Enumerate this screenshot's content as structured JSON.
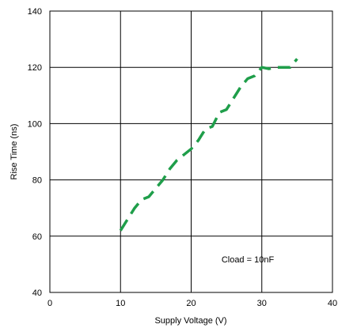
{
  "chart_data": {
    "type": "line",
    "title": "",
    "xlabel": "Supply Voltage (V)",
    "ylabel": "Rise Time (ns)",
    "xlim": [
      0,
      40
    ],
    "ylim": [
      40,
      140
    ],
    "x_ticks": [
      "0",
      "10",
      "20",
      "30",
      "40"
    ],
    "y_ticks": [
      "40",
      "60",
      "80",
      "100",
      "120",
      "140"
    ],
    "grid": true,
    "annotation": "Cload = 10nF",
    "series": [
      {
        "color": "#1f9e4a",
        "style": "dashed",
        "x": [
          10,
          11,
          12,
          13,
          14,
          15,
          16,
          17,
          18,
          19,
          20,
          21,
          22,
          23,
          24,
          25,
          26,
          27,
          28,
          29,
          30,
          31,
          32,
          33,
          34,
          35
        ],
        "y": [
          62,
          66,
          70,
          73,
          74,
          77,
          80,
          84,
          87,
          89,
          91,
          94,
          98,
          99,
          104,
          105,
          109,
          113,
          116,
          117,
          120,
          119.5,
          120,
          120,
          120,
          123
        ]
      }
    ]
  }
}
